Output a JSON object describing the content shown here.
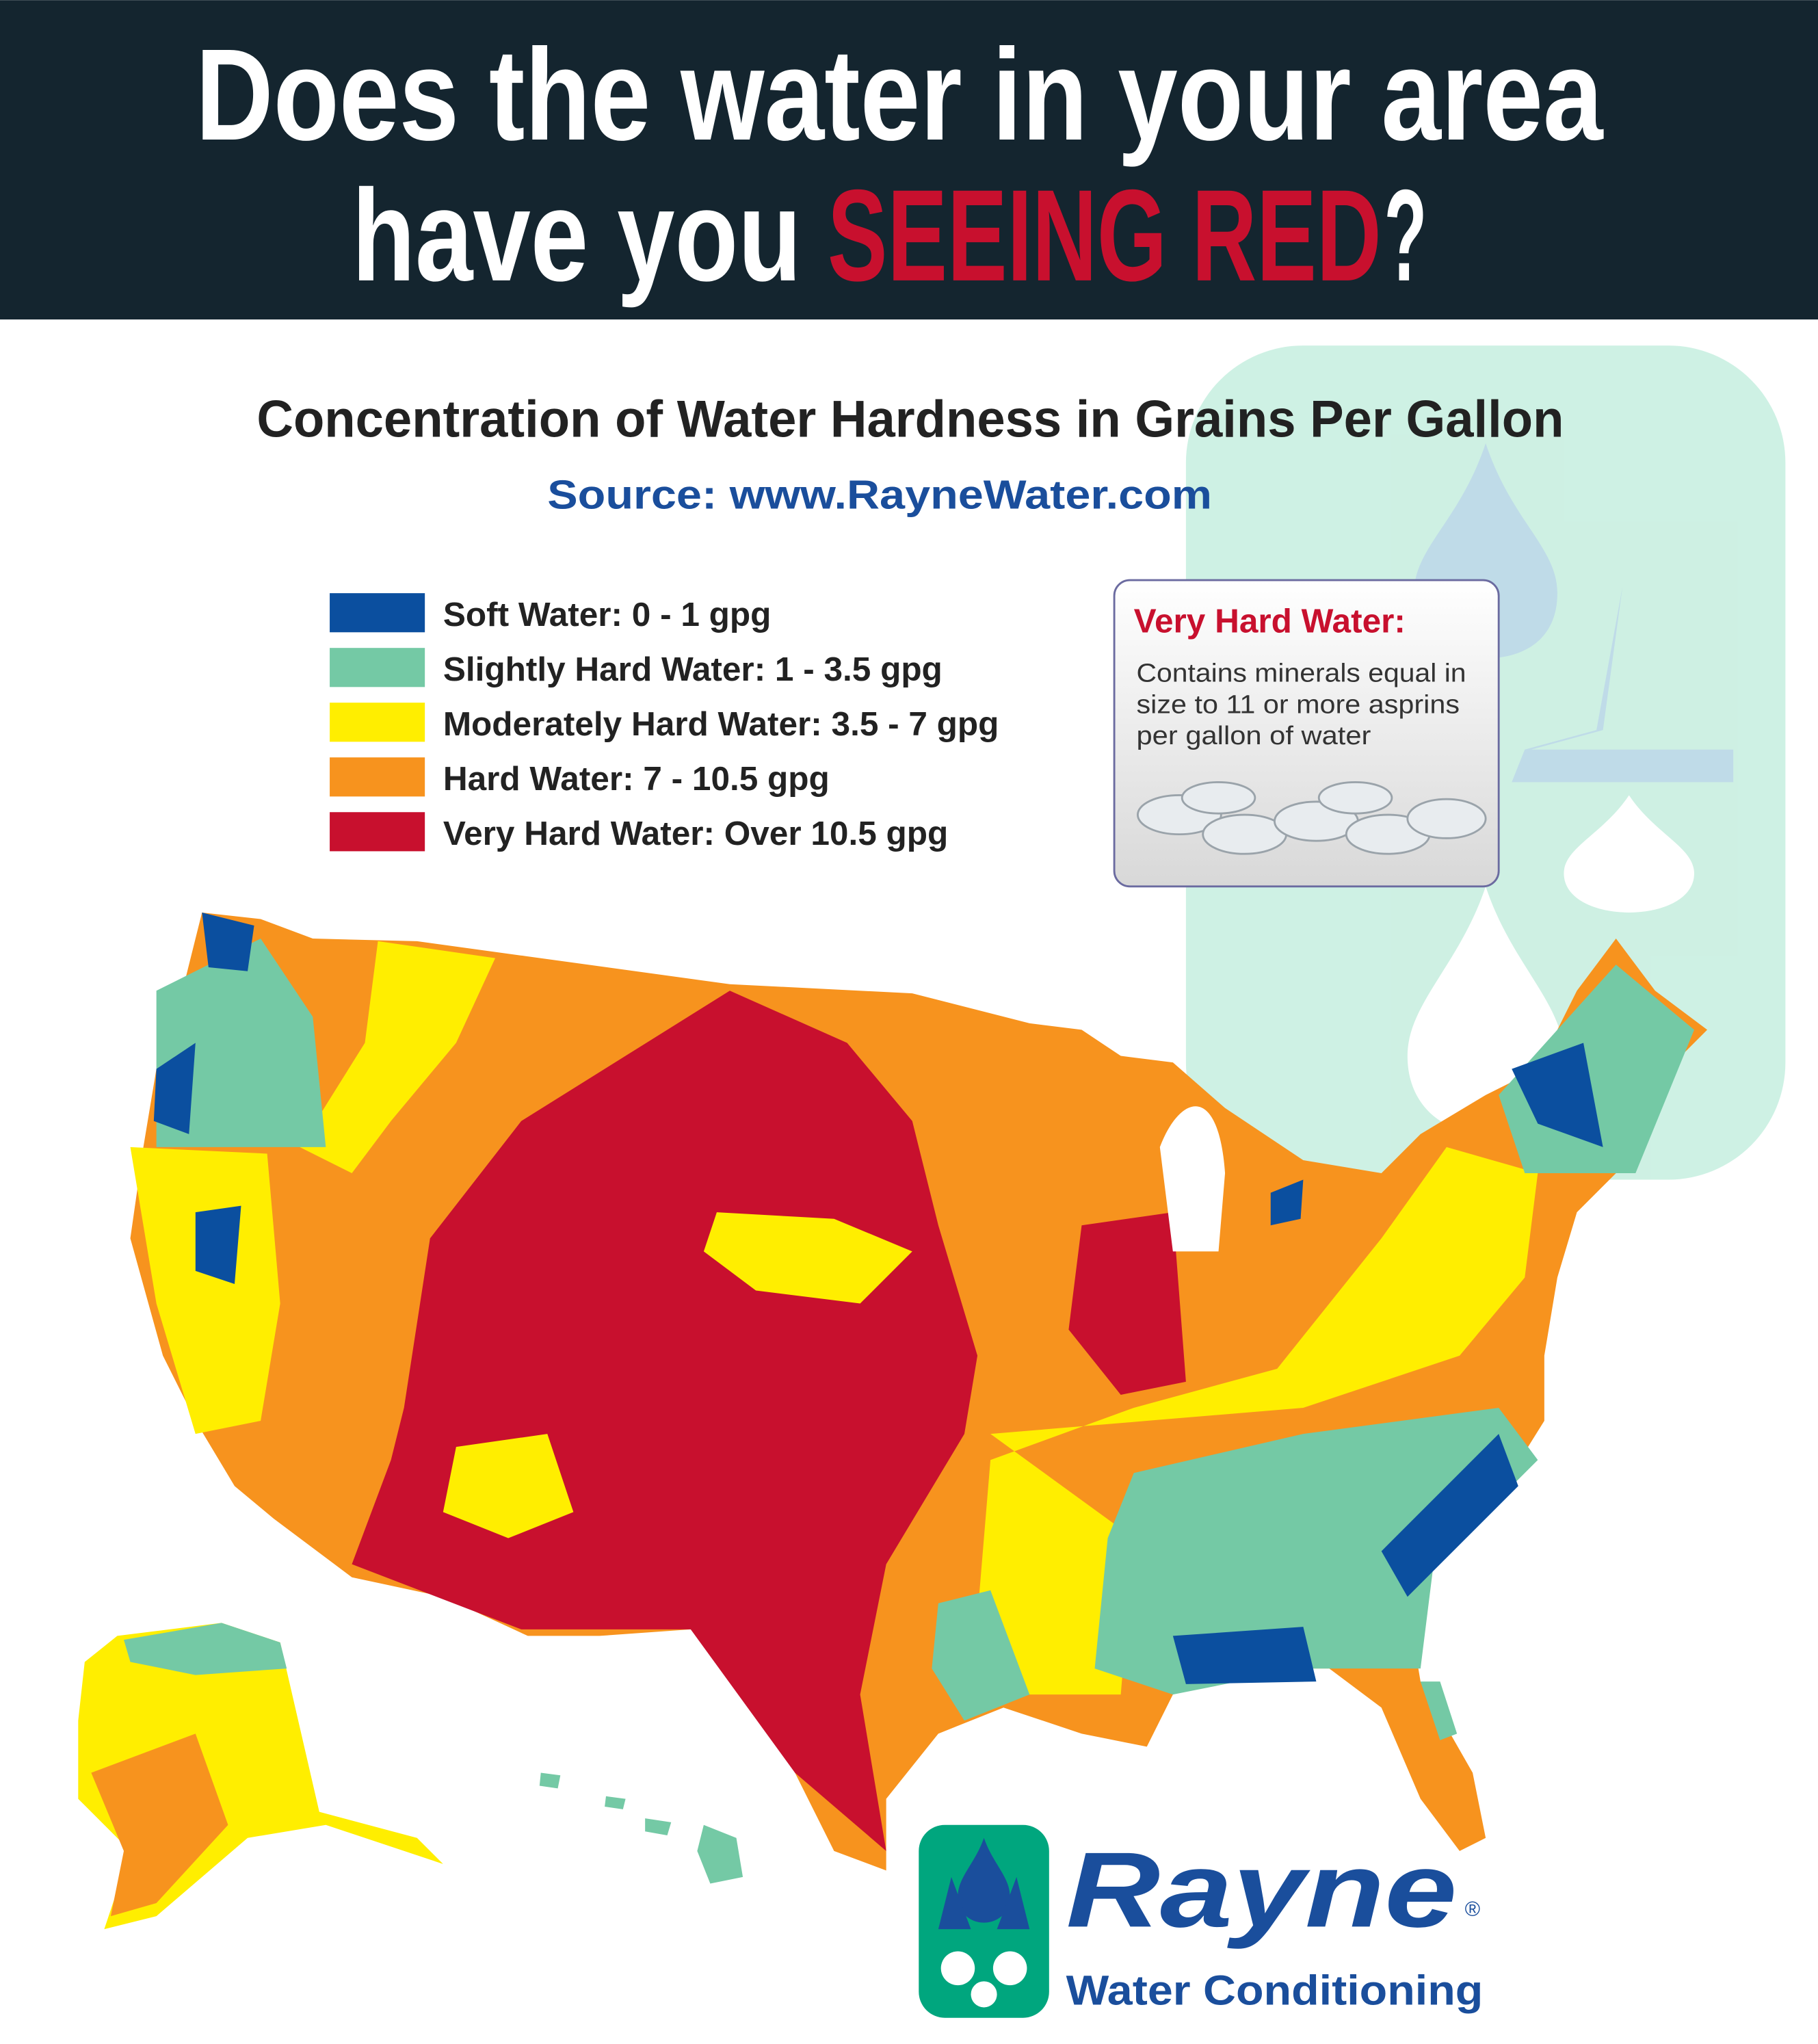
{
  "header": {
    "title_line1": "Does the water in your area",
    "title_line2_start": "have you",
    "title_line2_highlight": "SEEING RED",
    "title_line2_end": "?"
  },
  "subtitle": "Concentration of Water Hardness in Grains Per Gallon",
  "source": "Source: www.RayneWater.com",
  "legend": [
    {
      "label": "Soft Water: 0 - 1 gpg",
      "color": "#0b4f9f"
    },
    {
      "label": "Slightly Hard Water: 1 - 3.5 gpg",
      "color": "#74c9a5"
    },
    {
      "label": "Moderately Hard Water: 3.5 - 7 gpg",
      "color": "#ffee00"
    },
    {
      "label": "Hard Water: 7 - 10.5 gpg",
      "color": "#f7931e"
    },
    {
      "label": "Very Hard Water: Over 10.5 gpg",
      "color": "#c8102e"
    }
  ],
  "callout": {
    "title": "Very Hard Water:",
    "lines": [
      "Contains minerals equal in",
      "size to 11 or more asprins",
      "per gallon of water"
    ]
  },
  "logo": {
    "name": "Rayne",
    "mark": "®",
    "tagline": "Water Conditioning"
  }
}
